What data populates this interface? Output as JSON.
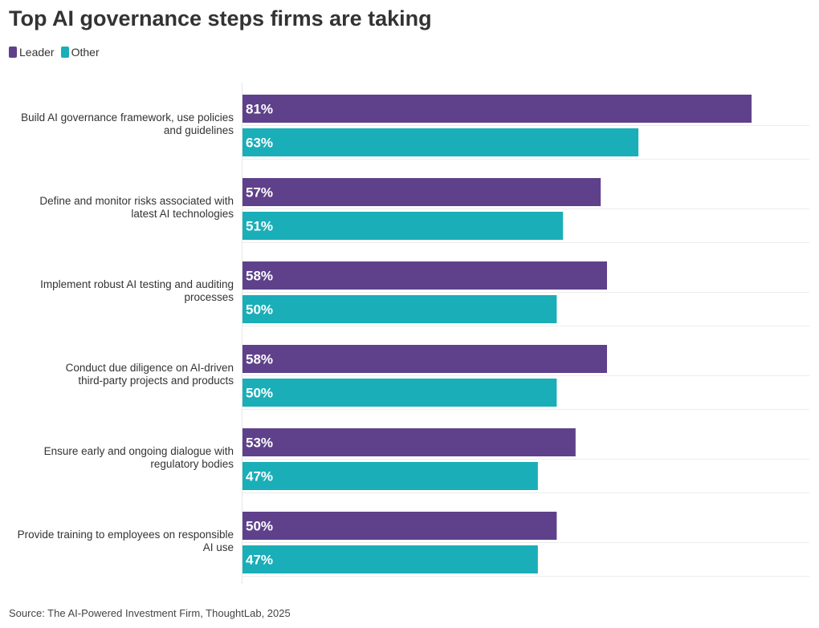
{
  "chart_data": {
    "type": "bar",
    "orientation": "horizontal",
    "title": "Top AI governance steps firms are taking",
    "categories": [
      [
        "Build AI governance framework, use policies",
        "and guidelines"
      ],
      [
        "Define and monitor risks associated with",
        "latest AI technologies"
      ],
      [
        "Implement robust AI testing and auditing",
        "processes"
      ],
      [
        "Conduct due diligence on AI-driven",
        "third-party projects and products"
      ],
      [
        "Ensure early and ongoing dialogue with",
        "regulatory bodies"
      ],
      [
        "Provide training to employees on responsible",
        "AI use"
      ]
    ],
    "series": [
      {
        "name": "Leader",
        "color": "#5e418a",
        "values": [
          81,
          57,
          58,
          58,
          53,
          50
        ]
      },
      {
        "name": "Other",
        "color": "#1aaeb8",
        "values": [
          63,
          51,
          50,
          50,
          47,
          47
        ]
      }
    ],
    "value_suffix": "%",
    "xlim": [
      0,
      90
    ],
    "legend_position": "top-left",
    "grid": true,
    "source": "Source: The AI-Powered Investment Firm, ThoughtLab, 2025"
  }
}
